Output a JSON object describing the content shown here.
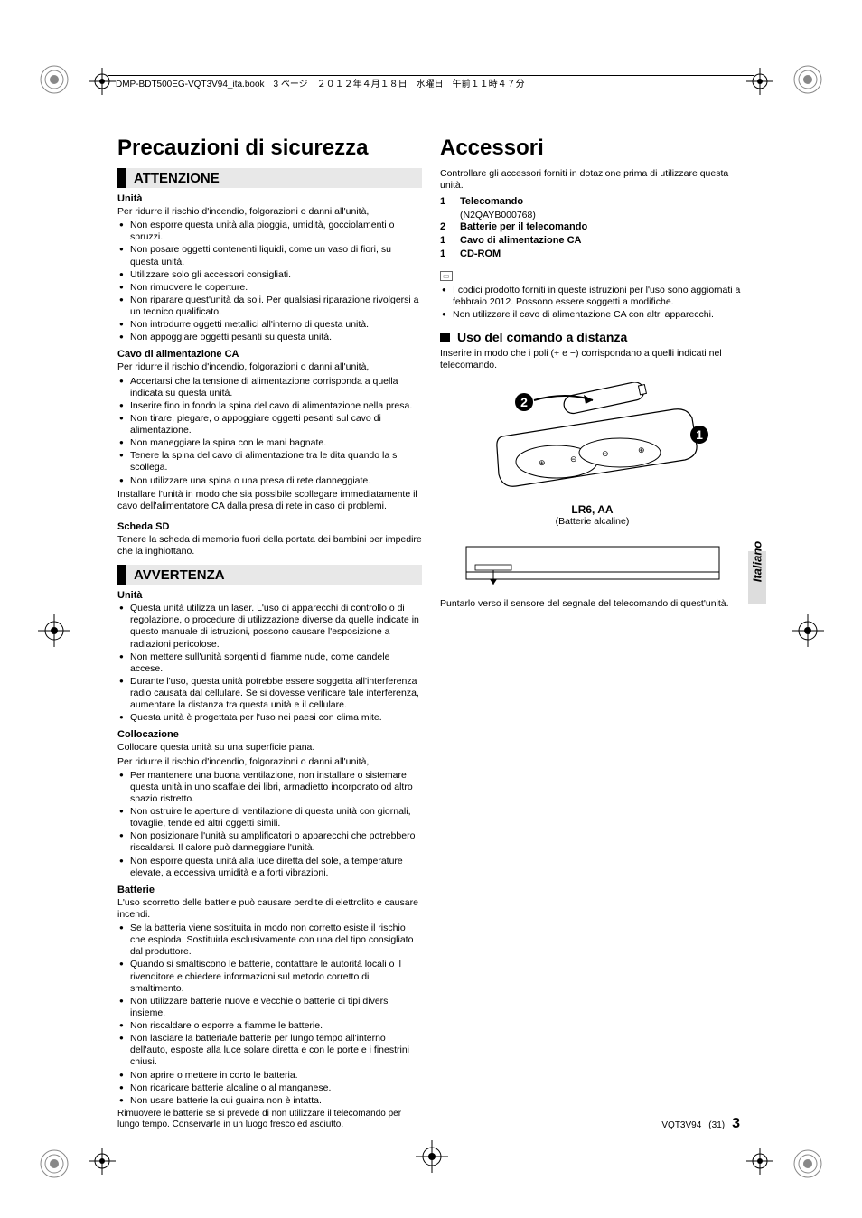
{
  "header": {
    "runner": "DMP-BDT500EG-VQT3V94_ita.book　3 ページ　２０１２年４月１８日　水曜日　午前１１時４７分"
  },
  "left": {
    "title": "Precauzioni di sicurezza",
    "attenzione": "ATTENZIONE",
    "unita_h": "Unità",
    "unita_intro": "Per ridurre il rischio d'incendio, folgorazioni o danni all'unità,",
    "unita_items": [
      "Non esporre questa unità alla pioggia, umidità, gocciolamenti o spruzzi.",
      "Non posare oggetti contenenti liquidi, come un vaso di fiori, su questa unità.",
      "Utilizzare solo gli accessori consigliati.",
      "Non rimuovere le coperture.",
      "Non riparare quest'unità da soli. Per qualsiasi riparazione rivolgersi a un tecnico qualificato.",
      "Non introdurre oggetti metallici all'interno di questa unità.",
      "Non appoggiare oggetti pesanti su questa unità."
    ],
    "cavo_h": "Cavo di alimentazione CA",
    "cavo_intro": "Per ridurre il rischio d'incendio, folgorazioni o danni all'unità,",
    "cavo_items": [
      "Accertarsi che la tensione di alimentazione corrisponda a quella indicata su questa unità.",
      "Inserire fino in fondo la spina del cavo di alimentazione nella presa.",
      "Non tirare, piegare, o appoggiare oggetti pesanti sul cavo di alimentazione.",
      "Non maneggiare la spina con le mani bagnate.",
      "Tenere la spina del cavo di alimentazione tra le dita quando la si scollega.",
      "Non utilizzare una spina o una presa di rete danneggiate."
    ],
    "cavo_after": "Installare l'unità in modo che sia possibile scollegare immediatamente il cavo dell'alimentatore CA dalla presa di rete in caso di problemi.",
    "sd_h": "Scheda SD",
    "sd_text": "Tenere la scheda di memoria fuori della portata dei bambini per impedire che la inghiottano.",
    "avvertenza": "AVVERTENZA",
    "unita2_h": "Unità",
    "unita2_items": [
      "Questa unità utilizza un laser. L'uso di apparecchi di controllo o di regolazione, o procedure di utilizzazione diverse da quelle indicate in questo manuale di istruzioni, possono causare l'esposizione a radiazioni pericolose.",
      "Non mettere sull'unità sorgenti di fiamme nude, come candele accese.",
      "Durante l'uso, questa unità potrebbe essere soggetta all'interferenza radio causata dal cellulare. Se si dovesse verificare tale interferenza, aumentare la distanza tra questa unità e il cellulare.",
      "Questa unità è progettata per l'uso nei paesi con clima mite."
    ],
    "colloc_h": "Collocazione",
    "colloc_intro1": "Collocare questa unità su una superficie piana.",
    "colloc_intro2": "Per ridurre il rischio d'incendio, folgorazioni o danni all'unità,",
    "colloc_items": [
      "Per mantenere una buona ventilazione, non installare o sistemare questa unità in uno scaffale dei libri, armadietto incorporato od altro spazio ristretto.",
      "Non ostruire le aperture di ventilazione di questa unità con giornali, tovaglie, tende ed altri oggetti simili.",
      "Non posizionare l'unità su amplificatori o apparecchi che potrebbero riscaldarsi. Il calore può danneggiare l'unità.",
      "Non esporre questa unità alla luce diretta del sole, a temperature elevate, a eccessiva umidità e a forti vibrazioni."
    ],
    "batt_h": "Batterie",
    "batt_intro": "L'uso scorretto delle batterie può causare perdite di elettrolito e causare incendi.",
    "batt_items": [
      "Se la batteria viene sostituita in modo non corretto esiste il rischio che esploda. Sostituirla esclusivamente con una del tipo consigliato dal produttore.",
      "Quando si smaltiscono le batterie, contattare le autorità locali o il rivenditore e chiedere informazioni sul metodo corretto di smaltimento.",
      "Non utilizzare batterie nuove e vecchie o batterie di tipi diversi insieme.",
      "Non riscaldare o esporre a fiamme le batterie.",
      "Non lasciare la batteria/le batterie per lungo tempo all'interno dell'auto, esposte alla luce solare diretta e con le porte e i finestrini chiusi.",
      "Non aprire o mettere in corto le batteria.",
      "Non ricaricare batterie alcaline o al manganese.",
      "Non usare batterie la cui guaina non è intatta."
    ],
    "batt_after": "Rimuovere le batterie se si prevede di non utilizzare il telecomando per lungo tempo. Conservarle in un luogo fresco ed asciutto."
  },
  "right": {
    "title": "Accessori",
    "intro": "Controllare gli accessori forniti in dotazione prima di utilizzare questa unità.",
    "accessories": [
      {
        "qty": "1",
        "item": "Telecomando",
        "sub": "(N2QAYB000768)"
      },
      {
        "qty": "2",
        "item": "Batterie per il telecomando"
      },
      {
        "qty": "1",
        "item": "Cavo di alimentazione CA"
      },
      {
        "qty": "1",
        "item": "CD-ROM"
      }
    ],
    "notes": [
      "I codici prodotto forniti in queste istruzioni per l'uso sono aggiornati a febbraio 2012. Possono essere soggetti a modifiche.",
      "Non utilizzare il cavo di alimentazione CA con altri apparecchi."
    ],
    "remote_h": "Uso del comando a distanza",
    "remote_intro": "Inserire in modo che i poli (+ e −) corrispondano a quelli indicati nel telecomando.",
    "batt_label": "LR6, AA",
    "batt_sub": "(Batterie alcaline)",
    "remote_after": "Puntarlo verso il sensore del segnale del telecomando di quest'unità."
  },
  "side_tab": "Italiano",
  "footer": {
    "code": "VQT3V94",
    "seq": "(31)",
    "page": "3"
  },
  "colors": {
    "bar_bg": "#e8e8e8",
    "accent": "#000000",
    "text": "#000000",
    "tab_shade": "#dddddd"
  }
}
